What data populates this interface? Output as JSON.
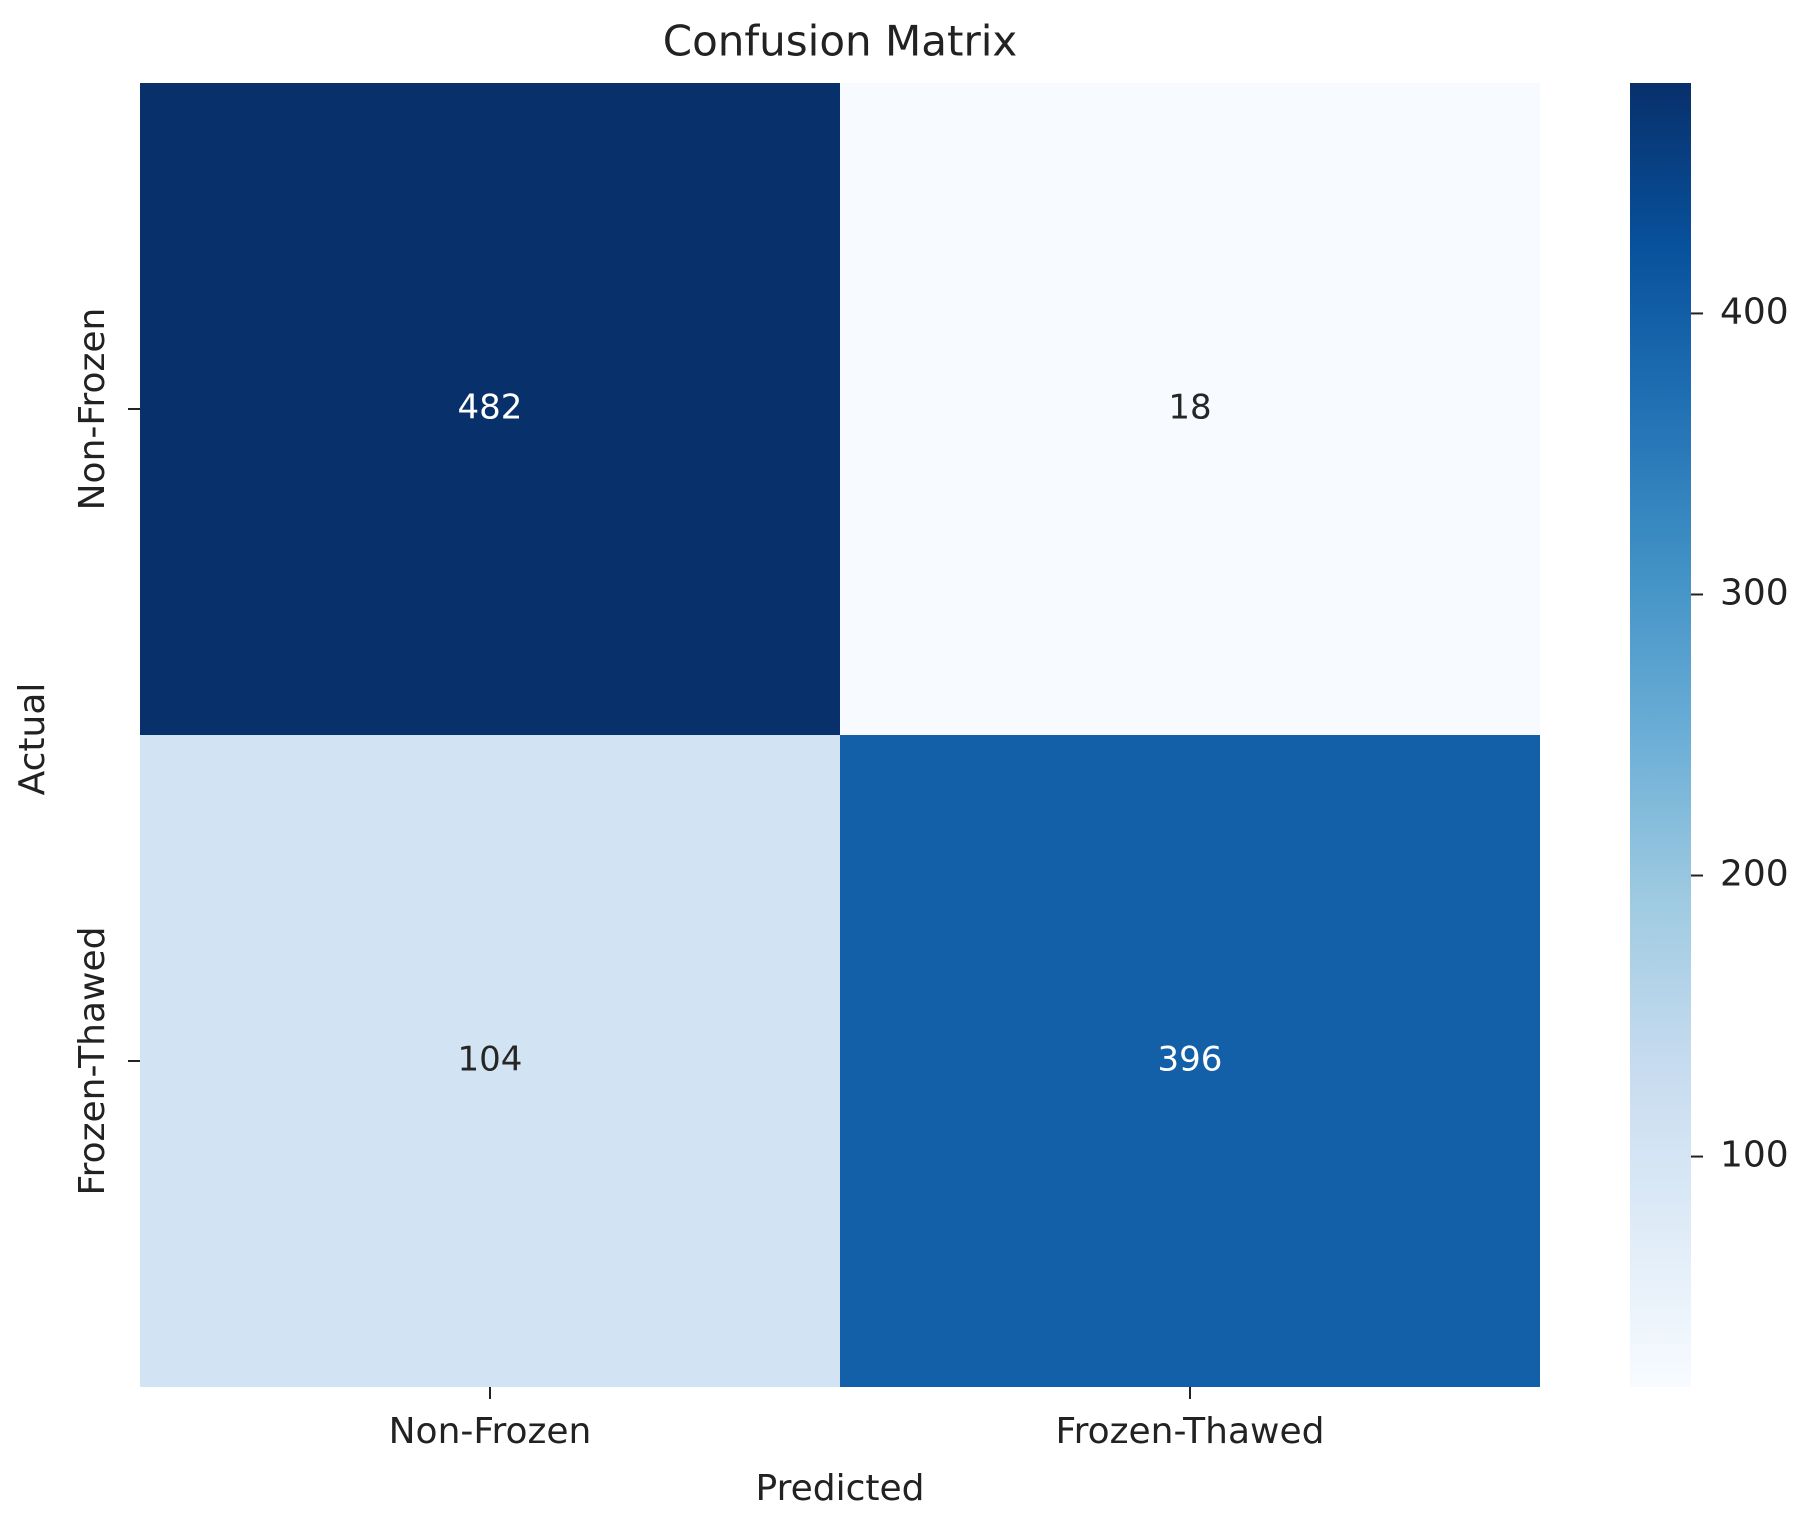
{
  "chart_data": {
    "type": "heatmap",
    "title": "Confusion Matrix",
    "xlabel": "Predicted",
    "ylabel": "Actual",
    "x_categories": [
      "Non-Frozen",
      "Frozen-Thawed"
    ],
    "y_categories": [
      "Non-Frozen",
      "Frozen-Thawed"
    ],
    "values": [
      [
        482,
        18
      ],
      [
        104,
        396
      ]
    ],
    "colormap": "Blues",
    "clim": [
      18,
      482
    ],
    "cticks": [
      100,
      200,
      300,
      400
    ]
  }
}
